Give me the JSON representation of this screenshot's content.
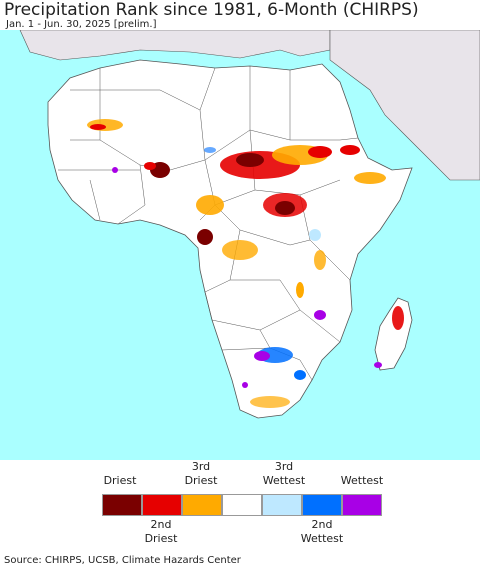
{
  "title": "Precipitation Rank since 1981, 6-Month (CHIRPS)",
  "subtitle": "Jan. 1 - Jun. 30, 2025 [prelim.]",
  "legend": {
    "top_labels": [
      "Driest",
      "3rd\nDriest",
      "3rd\nWettest",
      "Wettest"
    ],
    "bottom_labels": [
      "2nd\nDriest",
      "2nd\nWettest"
    ],
    "colors": [
      "#7a0000",
      "#e60000",
      "#ffaa00",
      "#ffffff",
      "#bee8ff",
      "#0070ff",
      "#a800e6"
    ]
  },
  "colors": {
    "ocean": "#aaffff",
    "land": "#ffffff",
    "outside": "#e8e4ea",
    "borders": "#555555"
  },
  "source": "Source: CHIRPS, UCSB, Climate Hazards Center"
}
